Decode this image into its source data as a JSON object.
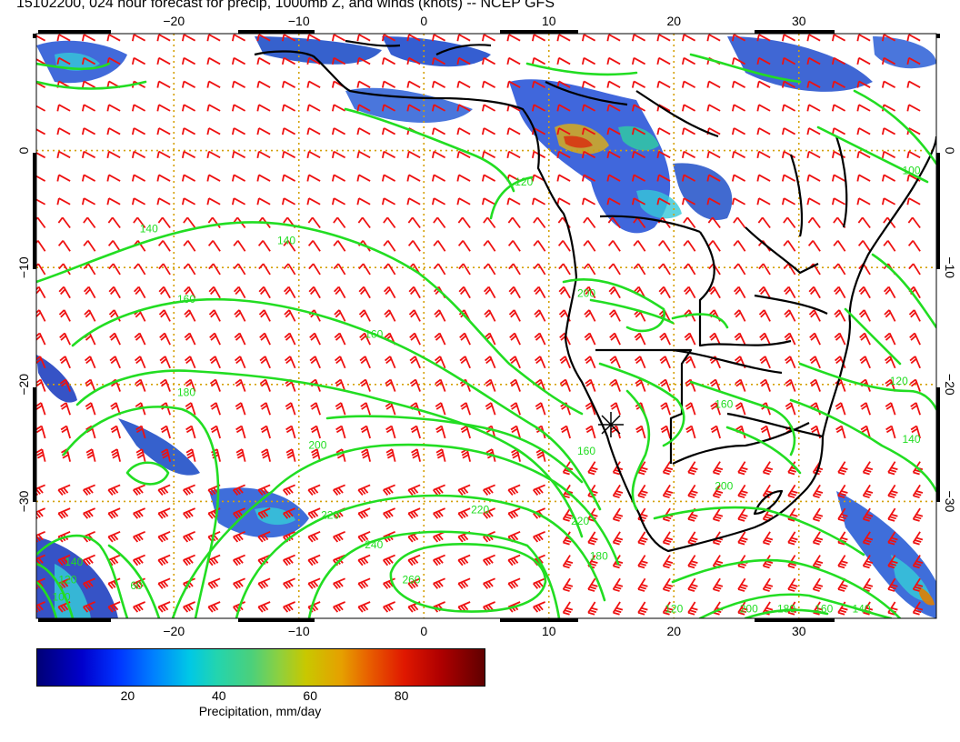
{
  "title": "15102200, 024 hour forecast for precip, 1000mb Z, and winds (knots) -- NCEP GFS",
  "map": {
    "lon_min": -31,
    "lon_max": 41,
    "lat_min": -40,
    "lat_max": 10,
    "lon_ticks": [
      -20,
      -10,
      0,
      10,
      20,
      30
    ],
    "lon_tick_labels": [
      "−20",
      "−10",
      "0",
      "10",
      "20",
      "30"
    ],
    "lat_ticks": [
      0,
      -10,
      -20,
      -30
    ],
    "lat_tick_labels": [
      "0",
      "−10",
      "−20",
      "−30"
    ],
    "contour_color": "#22dd22",
    "barb_color": "#ee1111",
    "gridline_color": "#d4a000",
    "land_color": "#000000",
    "contour_labels": [
      {
        "text": "120",
        "lon": 8,
        "lat": -3
      },
      {
        "text": "140",
        "lon": -22,
        "lat": -7
      },
      {
        "text": "140",
        "lon": -11,
        "lat": -8
      },
      {
        "text": "160",
        "lon": -19,
        "lat": -13
      },
      {
        "text": "160",
        "lon": -4,
        "lat": -16
      },
      {
        "text": "180",
        "lon": -19,
        "lat": -21
      },
      {
        "text": "200",
        "lon": -8.5,
        "lat": -25.5
      },
      {
        "text": "220",
        "lon": -7.5,
        "lat": -31.5
      },
      {
        "text": "220",
        "lon": 4.5,
        "lat": -31
      },
      {
        "text": "240",
        "lon": -4,
        "lat": -34
      },
      {
        "text": "260",
        "lon": -1,
        "lat": -37
      },
      {
        "text": "140",
        "lon": -28,
        "lat": -35.5
      },
      {
        "text": "120",
        "lon": -28.5,
        "lat": -37
      },
      {
        "text": "100",
        "lon": -29,
        "lat": -38.5
      },
      {
        "text": "60",
        "lon": -23,
        "lat": -37.5
      },
      {
        "text": "200",
        "lon": 13,
        "lat": -12.5
      },
      {
        "text": "160",
        "lon": 13,
        "lat": -26
      },
      {
        "text": "220",
        "lon": 12.5,
        "lat": -32
      },
      {
        "text": "180",
        "lon": 14,
        "lat": -35
      },
      {
        "text": "160",
        "lon": 24,
        "lat": -22
      },
      {
        "text": "140",
        "lon": 39,
        "lat": -25
      },
      {
        "text": "120",
        "lon": 38,
        "lat": -20
      },
      {
        "text": "100",
        "lon": 39,
        "lat": -2
      },
      {
        "text": "200",
        "lon": 24,
        "lat": -29
      },
      {
        "text": "200",
        "lon": 26,
        "lat": -39.5
      },
      {
        "text": "180",
        "lon": 29,
        "lat": -39.5
      },
      {
        "text": "160",
        "lon": 32,
        "lat": -39.5
      },
      {
        "text": "140",
        "lon": 35,
        "lat": -39.5
      },
      {
        "text": "120",
        "lon": 20,
        "lat": -39.5
      }
    ]
  },
  "colorbar": {
    "ticks": [
      "20",
      "40",
      "60",
      "80"
    ],
    "tick_values": [
      20,
      40,
      60,
      80
    ],
    "range": [
      0,
      98
    ],
    "label": "Precipitation, mm/day"
  }
}
